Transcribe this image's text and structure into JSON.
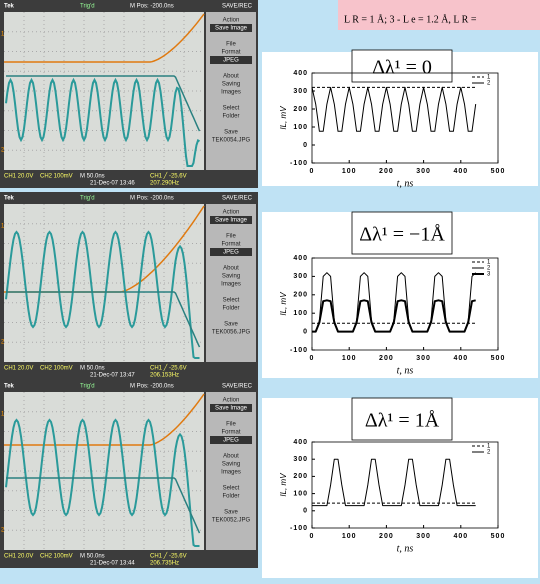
{
  "header": {
    "note": "L R = 1 Å; 3 - L e = 1.2 Å, L R ="
  },
  "scopes": [
    {
      "top": [
        "Tek",
        "Trig'd",
        "M Pos: -200.0ns",
        "SAVE/REC"
      ],
      "menu": [
        "Action",
        "Save Image",
        "File",
        "Format",
        "JPEG",
        "About",
        "Saving",
        "Images",
        "Select",
        "Folder",
        "Save",
        "TEK0054.JPG"
      ],
      "markers": [
        "1",
        "2"
      ],
      "bottom": [
        "CH1 20.0V",
        "CH2 100mV",
        "M 50.0ns",
        "CH1 ╱ -25.6V",
        "21-Dec-07 13:46",
        "207.290Hz"
      ]
    },
    {
      "top": [
        "Tek",
        "Trig'd",
        "M Pos: -200.0ns",
        "SAVE/REC"
      ],
      "menu": [
        "Action",
        "Save Image",
        "File",
        "Format",
        "JPEG",
        "About",
        "Saving",
        "Images",
        "Select",
        "Folder",
        "Save",
        "TEK0056.JPG"
      ],
      "markers": [
        "1",
        "2"
      ],
      "bottom": [
        "CH1 20.0V",
        "CH2 100mV",
        "M 50.0ns",
        "CH1 ╱ -25.6V",
        "21-Dec-07 13:47",
        "206.153Hz"
      ]
    },
    {
      "top": [
        "Tek",
        "Trig'd",
        "M Pos: -200.0ns",
        "SAVE/REC"
      ],
      "menu": [
        "Action",
        "Save Image",
        "File",
        "Format",
        "JPEG",
        "About",
        "Saving",
        "Images",
        "Select",
        "Folder",
        "Save",
        "TEK0052.JPG"
      ],
      "markers": [
        "1",
        "2"
      ],
      "bottom": [
        "CH1 20.0V",
        "CH2 100mV",
        "M 50.0ns",
        "CH1 ╱ -25.6V",
        "21-Dec-07 13:44",
        "206.735Hz"
      ]
    }
  ],
  "chart_data": [
    {
      "type": "line",
      "title": "Δλ¹ = 0",
      "x_label": "t, ns",
      "y_label": "IL, mV",
      "legend": "upper right",
      "x": [
        0,
        10,
        20,
        30,
        40,
        50,
        60,
        70,
        80,
        90,
        100,
        110,
        120,
        130,
        140,
        150,
        160,
        170,
        180,
        190,
        200,
        210,
        220,
        230,
        240,
        250,
        260,
        270,
        280,
        290,
        300,
        310,
        320,
        330,
        340,
        350,
        360,
        370,
        380,
        390,
        400,
        410,
        420,
        430,
        440
      ],
      "series": [
        {
          "name": "1",
          "color": "#000000",
          "dashed": true,
          "values": [
            320,
            320,
            320,
            320,
            320,
            320,
            320,
            320,
            320,
            320,
            320,
            320,
            320,
            320,
            320,
            320,
            320,
            320,
            320,
            320,
            320,
            320,
            320,
            320,
            320,
            320,
            320,
            320,
            320,
            320,
            320,
            320,
            320,
            320,
            320,
            320,
            320,
            320,
            320,
            320,
            320,
            320,
            320,
            320,
            320
          ]
        },
        {
          "name": "2",
          "color": "#000000",
          "values": [
            320,
            227,
            76,
            76,
            227,
            320,
            227,
            76,
            76,
            227,
            320,
            227,
            76,
            76,
            227,
            320,
            227,
            76,
            76,
            227,
            320,
            227,
            76,
            76,
            227,
            320,
            227,
            76,
            76,
            227,
            320,
            227,
            76,
            76,
            227,
            320,
            227,
            76,
            76,
            227,
            320,
            227,
            76,
            76,
            227
          ]
        }
      ],
      "xlim": [
        0,
        500
      ],
      "xticks": [
        0,
        100,
        200,
        300,
        400,
        500
      ],
      "ylim": [
        -100,
        400
      ],
      "yticks": [
        -100,
        0,
        100,
        200,
        300,
        400
      ]
    },
    {
      "type": "line",
      "title": "Δλ¹ = −1Å",
      "x_label": "t, ns",
      "y_label": "IL, mV",
      "legend": "upper right",
      "x": [
        0,
        10,
        20,
        30,
        40,
        50,
        60,
        70,
        80,
        90,
        100,
        110,
        120,
        130,
        140,
        150,
        160,
        170,
        180,
        190,
        200,
        210,
        220,
        230,
        240,
        250,
        260,
        270,
        280,
        290,
        300,
        310,
        320,
        330,
        340,
        350,
        360,
        370,
        380,
        390,
        400,
        410,
        420,
        430,
        440
      ],
      "series": [
        {
          "name": "1",
          "color": "#000000",
          "dashed": true,
          "values": [
            45,
            45,
            45,
            45,
            45,
            45,
            45,
            45,
            45,
            45,
            45,
            45,
            45,
            45,
            45,
            45,
            45,
            45,
            45,
            45,
            45,
            45,
            45,
            45,
            45,
            45,
            45,
            45,
            45,
            45,
            45,
            45,
            45,
            45,
            45,
            45,
            45,
            45,
            45,
            45,
            45,
            45,
            45,
            45,
            45
          ]
        },
        {
          "name": "2",
          "color": "#000000",
          "values": [
            0,
            0,
            60,
            300,
            320,
            300,
            60,
            0,
            0,
            0,
            0,
            0,
            60,
            300,
            320,
            300,
            60,
            0,
            0,
            0,
            0,
            0,
            60,
            300,
            320,
            300,
            60,
            0,
            0,
            0,
            0,
            0,
            60,
            300,
            320,
            300,
            60,
            0,
            0,
            0,
            0,
            0,
            60,
            300,
            320
          ]
        },
        {
          "name": "3",
          "color": "#000000",
          "thick": true,
          "values": [
            0,
            0,
            50,
            165,
            170,
            165,
            50,
            0,
            0,
            0,
            0,
            0,
            50,
            165,
            170,
            165,
            50,
            0,
            0,
            0,
            0,
            0,
            50,
            165,
            170,
            165,
            50,
            0,
            0,
            0,
            0,
            0,
            50,
            165,
            170,
            165,
            50,
            0,
            0,
            0,
            0,
            0,
            50,
            165,
            170
          ]
        }
      ],
      "xlim": [
        0,
        500
      ],
      "xticks": [
        0,
        100,
        200,
        300,
        400,
        500
      ],
      "ylim": [
        -100,
        400
      ],
      "yticks": [
        -100,
        0,
        100,
        200,
        300,
        400
      ]
    },
    {
      "type": "line",
      "title": "Δλ¹ = 1Å",
      "x_label": "t, ns",
      "y_label": "IL, mV",
      "legend": "upper right",
      "x": [
        0,
        10,
        20,
        30,
        40,
        50,
        60,
        70,
        80,
        90,
        100,
        110,
        120,
        130,
        140,
        150,
        160,
        170,
        180,
        190,
        200,
        210,
        220,
        230,
        240,
        250,
        260,
        270,
        280,
        290,
        300,
        310,
        320,
        330,
        340,
        350,
        360,
        370,
        380,
        390,
        400,
        410,
        420,
        430,
        440
      ],
      "series": [
        {
          "name": "1",
          "color": "#000000",
          "dashed": true,
          "values": [
            45,
            45,
            45,
            45,
            45,
            45,
            45,
            45,
            45,
            45,
            45,
            45,
            45,
            45,
            45,
            45,
            45,
            45,
            45,
            45,
            45,
            45,
            45,
            45,
            45,
            45,
            45,
            45,
            45,
            45,
            45,
            45,
            45,
            45,
            45,
            45,
            45,
            45,
            45,
            45,
            45,
            45,
            45,
            45,
            45
          ]
        },
        {
          "name": "2",
          "color": "#000000",
          "values": [
            30,
            30,
            30,
            30,
            30,
            150,
            300,
            300,
            150,
            30,
            30,
            30,
            30,
            30,
            30,
            150,
            300,
            300,
            150,
            30,
            30,
            30,
            30,
            30,
            30,
            150,
            300,
            300,
            150,
            30,
            30,
            30,
            30,
            30,
            30,
            150,
            300,
            300,
            150,
            30,
            30,
            30,
            30,
            30,
            30
          ]
        }
      ],
      "xlim": [
        0,
        500
      ],
      "xticks": [
        0,
        100,
        200,
        300,
        400,
        500
      ],
      "ylim": [
        -100,
        400
      ],
      "yticks": [
        -100,
        0,
        100,
        200,
        300,
        400
      ]
    }
  ]
}
